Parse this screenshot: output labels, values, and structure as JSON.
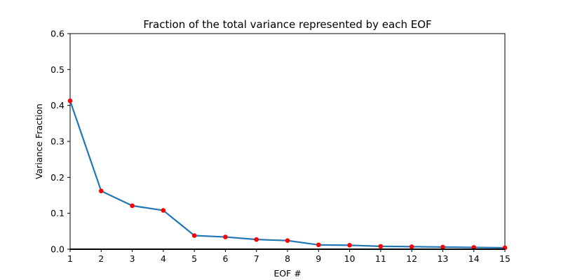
{
  "chart_data": {
    "type": "line",
    "title": "Fraction of the total variance represented by each EOF",
    "xlabel": "EOF #",
    "ylabel": "Variance Fraction",
    "xlim": [
      1,
      15
    ],
    "ylim": [
      0,
      0.6
    ],
    "xticks": [
      1,
      2,
      3,
      4,
      5,
      6,
      7,
      8,
      9,
      10,
      11,
      12,
      13,
      14,
      15
    ],
    "yticks": [
      0.0,
      0.1,
      0.2,
      0.3,
      0.4,
      0.5,
      0.6
    ],
    "ytick_labels": [
      "0.0",
      "0.1",
      "0.2",
      "0.3",
      "0.4",
      "0.5",
      "0.6"
    ],
    "grid": false,
    "zero_line": true,
    "series": [
      {
        "x": [
          1,
          2,
          3,
          4,
          5,
          6,
          7,
          8,
          9,
          10,
          11,
          12,
          13,
          14,
          15
        ],
        "values": [
          0.413,
          0.162,
          0.121,
          0.108,
          0.038,
          0.034,
          0.027,
          0.024,
          0.012,
          0.011,
          0.008,
          0.007,
          0.006,
          0.005,
          0.004
        ],
        "line_color": "#1f77b4",
        "marker_color": "#ff0000"
      }
    ]
  }
}
